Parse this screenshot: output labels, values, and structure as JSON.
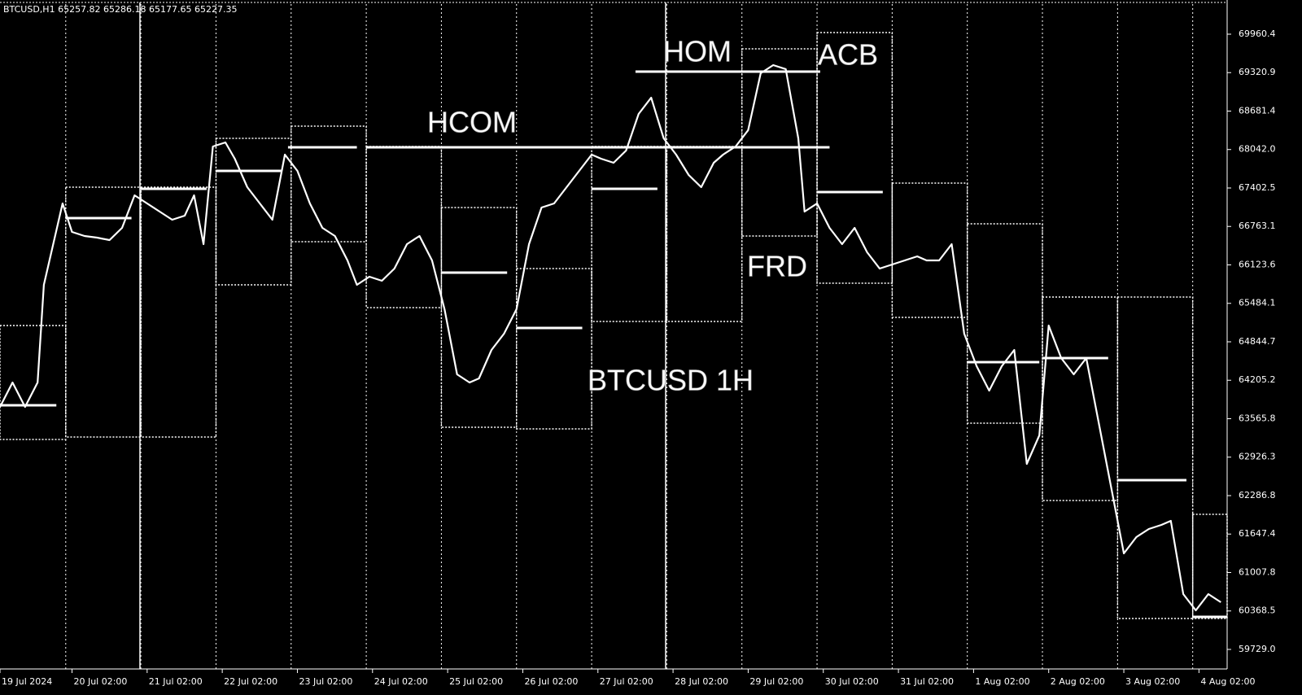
{
  "chart_data": {
    "type": "line",
    "title": "BTCUSD,H1 65257.82 65286.18 65177.65 65227.35",
    "annotations": [
      "HOM",
      "ACB",
      "HCOM",
      "FRD",
      "BTCUSD 1H"
    ],
    "color": "#ffffff",
    "x": [
      0,
      4,
      8,
      12,
      14,
      17,
      20,
      23,
      27,
      31,
      35,
      39,
      43,
      47,
      51,
      55,
      59,
      62,
      65,
      68,
      72,
      75,
      79,
      83,
      87,
      91,
      95,
      99,
      103,
      107,
      111,
      114,
      118,
      122,
      126,
      130,
      134,
      138,
      142,
      146,
      150,
      153,
      157,
      161,
      165,
      169,
      173,
      177,
      181,
      185,
      189,
      192,
      196,
      200,
      204,
      208,
      212,
      216,
      220,
      224,
      228,
      231,
      235,
      239,
      243,
      247,
      251,
      255,
      257,
      261,
      265,
      269,
      273,
      277,
      281,
      285,
      289,
      293,
      296,
      300,
      304,
      308,
      312,
      316,
      320,
      324,
      328,
      332,
      335,
      339,
      343,
      347,
      351,
      355,
      359,
      363,
      367,
      371,
      374,
      378,
      382,
      386,
      390
    ],
    "values": [
      63762,
      64168,
      63762,
      64168,
      65792,
      66469,
      67145,
      66672,
      66604,
      66577,
      66536,
      66739,
      67281,
      67145,
      67010,
      66875,
      66942,
      67281,
      66469,
      68093,
      68160,
      67890,
      67416,
      67145,
      66875,
      67957,
      67687,
      67145,
      66739,
      66604,
      66198,
      65792,
      65927,
      65860,
      66063,
      66469,
      66604,
      66198,
      65386,
      64303,
      64168,
      64236,
      64709,
      64980,
      65386,
      66469,
      67078,
      67145,
      67416,
      67687,
      67957,
      67890,
      67822,
      68025,
      68634,
      68905,
      68228,
      67957,
      67619,
      67416,
      67822,
      67957,
      68093,
      68364,
      69311,
      69446,
      69379,
      68228,
      67010,
      67145,
      66739,
      66469,
      66739,
      66333,
      66063,
      66130,
      66198,
      66266,
      66198,
      66198,
      66469,
      64980,
      64439,
      64033,
      64439,
      64709,
      62815,
      63288,
      65115,
      64574,
      64303,
      64574,
      63491,
      62409,
      61326,
      61597,
      61732,
      61800,
      61867,
      60649,
      60378,
      60649,
      60514
    ],
    "ranges": [
      {
        "high": 65115,
        "low": 63221
      },
      {
        "high": 67416,
        "low": 63261
      },
      {
        "high": 67416,
        "low": 63261
      },
      {
        "high": 68228,
        "low": 65792
      },
      {
        "high": 68431,
        "low": 66509
      },
      {
        "high": 68093,
        "low": 65413
      },
      {
        "high": 67078,
        "low": 63423
      },
      {
        "high": 66063,
        "low": 63396
      },
      {
        "high": 68093,
        "low": 65183
      },
      {
        "high": 68093,
        "low": 65183
      },
      {
        "high": 69717,
        "low": 66604
      },
      {
        "high": 69987,
        "low": 65819
      },
      {
        "high": 67484,
        "low": 65250
      },
      {
        "high": 66807,
        "low": 63491
      },
      {
        "high": 65589,
        "low": 62205
      },
      {
        "high": 65589,
        "low": 60243
      },
      {
        "high": 61975,
        "low": 60243
      }
    ],
    "levels": [
      {
        "value": 63789,
        "from": 0,
        "to": 18
      },
      {
        "value": 66902,
        "from": 21,
        "to": 42
      },
      {
        "value": 67389,
        "from": 45,
        "to": 66
      },
      {
        "value": 67687,
        "from": 69,
        "to": 90
      },
      {
        "value": 68079,
        "from": 92,
        "to": 114
      },
      {
        "value": 68079,
        "from": 117,
        "to": 265
      },
      {
        "value": 69338,
        "from": 203,
        "to": 262
      },
      {
        "value": 65995,
        "from": 141,
        "to": 162
      },
      {
        "value": 65075,
        "from": 165,
        "to": 186
      },
      {
        "value": 67389,
        "from": 189,
        "to": 210
      },
      {
        "value": 67335,
        "from": 261,
        "to": 282
      },
      {
        "value": 64506,
        "from": 309,
        "to": 332
      },
      {
        "value": 64574,
        "from": 333,
        "to": 354
      },
      {
        "value": 62544,
        "from": 357,
        "to": 379
      },
      {
        "value": 60270,
        "from": 381,
        "to": 392
      }
    ],
    "xlim": [
      0,
      392
    ],
    "xticks": [
      {
        "value": 0,
        "label": "19 Jul 2024"
      },
      {
        "value": 23,
        "label": "20 Jul 02:00"
      },
      {
        "value": 47,
        "label": "21 Jul 02:00"
      },
      {
        "value": 71,
        "label": "22 Jul 02:00"
      },
      {
        "value": 95,
        "label": "23 Jul 02:00"
      },
      {
        "value": 119,
        "label": "24 Jul 02:00"
      },
      {
        "value": 143,
        "label": "25 Jul 02:00"
      },
      {
        "value": 167,
        "label": "26 Jul 02:00"
      },
      {
        "value": 191,
        "label": "27 Jul 02:00"
      },
      {
        "value": 215,
        "label": "28 Jul 02:00"
      },
      {
        "value": 239,
        "label": "29 Jul 02:00"
      },
      {
        "value": 263,
        "label": "30 Jul 02:00"
      },
      {
        "value": 287,
        "label": "31 Jul 02:00"
      },
      {
        "value": 311,
        "label": "1 Aug 02:00"
      },
      {
        "value": 335,
        "label": "2 Aug 02:00"
      },
      {
        "value": 359,
        "label": "3 Aug 02:00"
      },
      {
        "value": 383,
        "label": "4 Aug 02:00"
      }
    ],
    "ylim": [
      59404,
      70461
    ],
    "yticks": [
      {
        "value": 59729.0,
        "label": "59729.0"
      },
      60368.5,
      61007.8,
      61647.4,
      62286.8,
      62926.3,
      63565.8,
      64205.2,
      64844.7,
      65484.1,
      66123.6,
      66763.1,
      67402.5,
      {
        "value": 68042.0,
        "label": "68042.0"
      },
      68681.4,
      69320.9,
      69960.4
    ]
  }
}
